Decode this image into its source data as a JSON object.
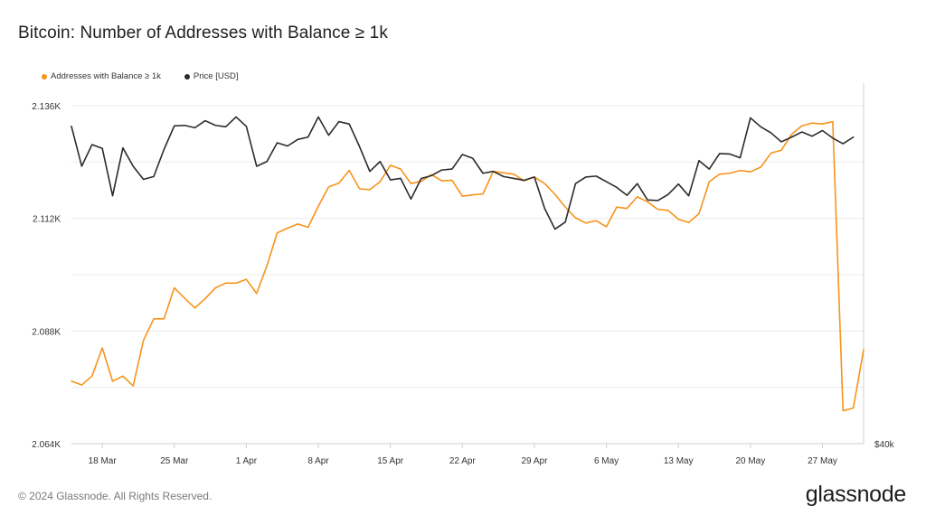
{
  "title": "Bitcoin: Number of Addresses with Balance ≥ 1k",
  "footer": "© 2024 Glassnode. All Rights Reserved.",
  "brand": "glassnode",
  "chart_data": {
    "type": "line",
    "title": "Bitcoin: Number of Addresses with Balance ≥ 1k",
    "x_tick_labels": [
      "18 Mar",
      "25 Mar",
      "1 Apr",
      "8 Apr",
      "15 Apr",
      "22 Apr",
      "29 Apr",
      "6 May",
      "13 May",
      "20 May",
      "27 May"
    ],
    "x_tick_index": [
      3,
      10,
      17,
      24,
      31,
      38,
      45,
      52,
      59,
      66,
      73
    ],
    "y_left": {
      "ticks": [
        "2.064K",
        "2.088K",
        "2.112K",
        "2.136K"
      ],
      "tick_values": [
        2064,
        2088,
        2112,
        2136
      ],
      "range": [
        2064,
        2140.8
      ]
    },
    "y_right": {
      "ticks": [
        "$40k"
      ]
    },
    "grid": true,
    "legend_position": "top-left",
    "series": [
      {
        "name": "Addresses with Balance ≥ 1k",
        "color": "#f7931a",
        "values": [
          2077.3,
          2076.5,
          2078.4,
          2084.4,
          2077.3,
          2078.4,
          2076.3,
          2086.0,
          2090.6,
          2090.6,
          2097.2,
          2095.0,
          2092.9,
          2094.9,
          2097.2,
          2098.2,
          2098.2,
          2099.0,
          2096.0,
          2101.9,
          2108.9,
          2109.9,
          2110.8,
          2110.1,
          2114.6,
          2118.7,
          2119.5,
          2122.2,
          2118.3,
          2118.1,
          2119.8,
          2123.3,
          2122.5,
          2119.4,
          2119.9,
          2121.3,
          2120.0,
          2120.1,
          2116.7,
          2117.0,
          2117.2,
          2122.0,
          2121.7,
          2121.4,
          2120.0,
          2120.8,
          2119.4,
          2117.1,
          2114.4,
          2112.1,
          2111.0,
          2111.5,
          2110.2,
          2114.4,
          2114.1,
          2116.6,
          2115.5,
          2113.9,
          2113.7,
          2111.8,
          2111.1,
          2113.0,
          2119.8,
          2121.4,
          2121.6,
          2122.2,
          2121.9,
          2122.9,
          2125.9,
          2126.5,
          2129.9,
          2131.7,
          2132.3,
          2132.1,
          2132.6,
          2071.0,
          2071.6,
          2084.0
        ]
      },
      {
        "name": "Price [USD]",
        "color": "#2b2b2b",
        "values": [
          2131.6,
          2123.1,
          2127.7,
          2126.9,
          2116.8,
          2127.0,
          2123.1,
          2120.3,
          2120.9,
          2126.7,
          2131.7,
          2131.8,
          2131.3,
          2132.8,
          2131.8,
          2131.5,
          2133.6,
          2131.6,
          2123.1,
          2124.1,
          2128.1,
          2127.4,
          2128.8,
          2129.3,
          2133.6,
          2129.7,
          2132.6,
          2132.1,
          2127.3,
          2122.0,
          2124.1,
          2120.2,
          2120.5,
          2116.1,
          2120.5,
          2121.1,
          2122.3,
          2122.5,
          2125.6,
          2124.8,
          2121.6,
          2122.0,
          2120.9,
          2120.5,
          2120.1,
          2120.8,
          2114.1,
          2109.7,
          2111.2,
          2119.4,
          2120.8,
          2121.0,
          2119.8,
          2118.6,
          2116.9,
          2119.4,
          2115.9,
          2115.8,
          2117.1,
          2119.3,
          2116.8,
          2124.3,
          2122.5,
          2125.8,
          2125.7,
          2124.9,
          2133.4,
          2131.5,
          2130.2,
          2128.3,
          2129.3,
          2130.4,
          2129.5,
          2130.7,
          2129.1,
          2127.9,
          2129.3
        ]
      }
    ]
  }
}
